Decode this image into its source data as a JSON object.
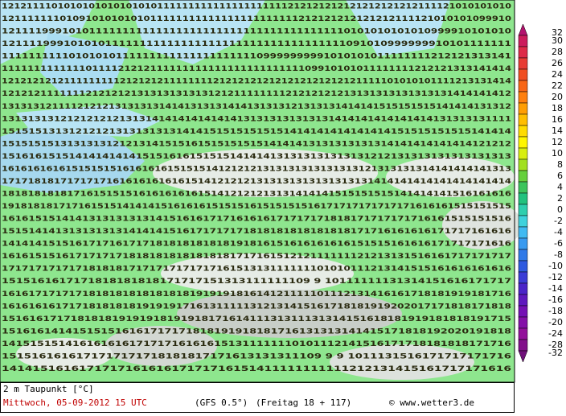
{
  "map": {
    "rows": [
      "1212111101010101010101010111111111111111111111212121212121212121212111121010101010",
      "1211111110109101010101011111111111111111111111212121212121212111121010101099910",
      "1211119991010111111111111111111111111111111111111110101010101010999910101010",
      "12111199910101011111111111111111111111111111111111091010999999910101111111",
      "1111111111010101011111111111111111111109999999991010101011111111212121313141",
      "1111111111111011112121211111111111111111111111109910101011111111212121313141414",
      "1212121212111111111212121211111111212121212121212121212121111101010101111213131414",
      "1212121111111212121213131313131312121111111121212121213131313131313131414141412",
      "131313121111212121313131314141313131414131313121313131414141515151515141414131312",
      "131313131212121212131314141414141414131313131313131414141414141414131313131111",
      "1515151313121212131313131314141515151515151414141414141414151515151515141414",
      "151515151313131312121314151516151515151514141413131313131314141414141414121212",
      "1516161515141414141415151616151515141414131313131313131212131313131313131313",
      "16161616161515151516161616151515141212121313131313131313121313131314141414141313",
      "171718181717171716161616161615141212121313131313131313131414141414141414141414",
      "181818181817161515151616161616151412121213131414141515151515141414141516161616",
      "19181818171716151514141415161616151515161515151516171717171717171616161515151515",
      "1616151514141313131313141516161717161616171717171818171717171716161515151516",
      "1515141413131313131414141516171717171818181818181818171716161616171717161616",
      "1414141515161717161717181818181818191816151616161616151515161616171717171616",
      "1616151516171717171818181818181818171716151212111111121213131516161717171717",
      "1717171717171818181717171717171716151313111111101010111213141515161616161616",
      "1515161617171818181818171717151313111111109 9 10111111131314151616171717",
      "1616171717171818181818181818191919181614121111101112131416161718181919181716",
      "1616161617171818181819191917161311111312131415161718181919202017171818171818",
      "15161617171818181919191819191817161411131311131314151618181919181818191715",
      "151616141415151516161717171818191918181716131313141415171818192020191818",
      "141515151416161616171717161616151311111110101112141516171718181818171716",
      "1515161616171717171718181817171613131311109 9 9 1011131516171717171716",
      "141415161617171716161617171716151411111111111212131415161717171616"
    ],
    "legend": [
      {
        "value": 32,
        "color": "#b3126e"
      },
      {
        "value": 30,
        "color": "#cc1c5c"
      },
      {
        "value": 28,
        "color": "#de2a48"
      },
      {
        "value": 26,
        "color": "#e83c34"
      },
      {
        "value": 24,
        "color": "#f04e22"
      },
      {
        "value": 22,
        "color": "#f86616"
      },
      {
        "value": 20,
        "color": "#ff800e"
      },
      {
        "value": 18,
        "color": "#ff9e04"
      },
      {
        "value": 16,
        "color": "#ffbe00"
      },
      {
        "value": 14,
        "color": "#ffdc00"
      },
      {
        "value": 12,
        "color": "#fff600"
      },
      {
        "value": 10,
        "color": "#d8ee10"
      },
      {
        "value": 8,
        "color": "#a2e020"
      },
      {
        "value": 6,
        "color": "#66d03c"
      },
      {
        "value": 4,
        "color": "#3cc45c"
      },
      {
        "value": 2,
        "color": "#22c27e"
      },
      {
        "value": 0,
        "color": "#2ecfae"
      },
      {
        "value": -2,
        "color": "#3ed2dc"
      },
      {
        "value": -4,
        "color": "#40baf2"
      },
      {
        "value": -6,
        "color": "#389af0"
      },
      {
        "value": -8,
        "color": "#307ae8"
      },
      {
        "value": -10,
        "color": "#2e5ae0"
      },
      {
        "value": -12,
        "color": "#3a3cd6"
      },
      {
        "value": -14,
        "color": "#4a24c8"
      },
      {
        "value": -16,
        "color": "#5e18be"
      },
      {
        "value": -18,
        "color": "#7410b4"
      },
      {
        "value": -20,
        "color": "#8410a8"
      },
      {
        "value": -24,
        "color": "#92109a"
      },
      {
        "value": -28,
        "color": "#82108a"
      },
      {
        "value": -32,
        "color": "#70107a"
      }
    ]
  },
  "footer": {
    "title": "2 m Taupunkt [°C]",
    "date": "Mittwoch, 05-09-2012  15 UTC",
    "model": "(GFS 0.5°)",
    "run": "(Freitag 18 + 117)",
    "copyright": "© www.wetter3.de"
  }
}
